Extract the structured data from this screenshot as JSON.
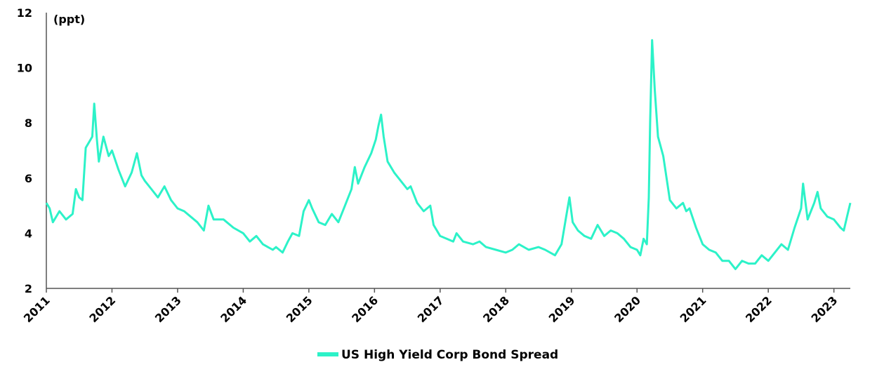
{
  "chart_data": {
    "type": "line",
    "unit_label": "(ppt)",
    "xlim": [
      2011,
      2023.25
    ],
    "ylim": [
      2,
      12
    ],
    "y_ticks": [
      "2",
      "4",
      "6",
      "8",
      "10",
      "12"
    ],
    "x_ticks": [
      "2011",
      "2012",
      "2013",
      "2014",
      "2015",
      "2016",
      "2017",
      "2018",
      "2019",
      "2020",
      "2021",
      "2022",
      "2023"
    ],
    "grid": false,
    "legend_position": "bottom-center",
    "series": [
      {
        "name": "US High Yield Corp Bond Spread",
        "color": "#2CF2C8",
        "points": [
          [
            2011.0,
            5.1
          ],
          [
            2011.05,
            4.9
          ],
          [
            2011.1,
            4.4
          ],
          [
            2011.2,
            4.8
          ],
          [
            2011.3,
            4.5
          ],
          [
            2011.4,
            4.7
          ],
          [
            2011.45,
            5.6
          ],
          [
            2011.5,
            5.3
          ],
          [
            2011.55,
            5.2
          ],
          [
            2011.6,
            7.1
          ],
          [
            2011.65,
            7.3
          ],
          [
            2011.7,
            7.5
          ],
          [
            2011.73,
            8.7
          ],
          [
            2011.77,
            7.4
          ],
          [
            2011.8,
            6.6
          ],
          [
            2011.87,
            7.5
          ],
          [
            2011.95,
            6.8
          ],
          [
            2012.0,
            7.0
          ],
          [
            2012.1,
            6.3
          ],
          [
            2012.2,
            5.7
          ],
          [
            2012.3,
            6.2
          ],
          [
            2012.38,
            6.9
          ],
          [
            2012.45,
            6.1
          ],
          [
            2012.5,
            5.9
          ],
          [
            2012.6,
            5.6
          ],
          [
            2012.7,
            5.3
          ],
          [
            2012.8,
            5.7
          ],
          [
            2012.9,
            5.2
          ],
          [
            2013.0,
            4.9
          ],
          [
            2013.1,
            4.8
          ],
          [
            2013.2,
            4.6
          ],
          [
            2013.3,
            4.4
          ],
          [
            2013.4,
            4.1
          ],
          [
            2013.47,
            5.0
          ],
          [
            2013.55,
            4.5
          ],
          [
            2013.7,
            4.5
          ],
          [
            2013.85,
            4.2
          ],
          [
            2014.0,
            4.0
          ],
          [
            2014.1,
            3.7
          ],
          [
            2014.2,
            3.9
          ],
          [
            2014.3,
            3.6
          ],
          [
            2014.45,
            3.4
          ],
          [
            2014.5,
            3.5
          ],
          [
            2014.6,
            3.3
          ],
          [
            2014.68,
            3.7
          ],
          [
            2014.75,
            4.0
          ],
          [
            2014.85,
            3.9
          ],
          [
            2014.92,
            4.8
          ],
          [
            2015.0,
            5.2
          ],
          [
            2015.05,
            4.9
          ],
          [
            2015.15,
            4.4
          ],
          [
            2015.25,
            4.3
          ],
          [
            2015.35,
            4.7
          ],
          [
            2015.45,
            4.4
          ],
          [
            2015.55,
            5.0
          ],
          [
            2015.65,
            5.6
          ],
          [
            2015.7,
            6.4
          ],
          [
            2015.75,
            5.8
          ],
          [
            2015.85,
            6.4
          ],
          [
            2015.95,
            6.9
          ],
          [
            2016.02,
            7.4
          ],
          [
            2016.06,
            7.9
          ],
          [
            2016.1,
            8.3
          ],
          [
            2016.14,
            7.5
          ],
          [
            2016.2,
            6.6
          ],
          [
            2016.3,
            6.2
          ],
          [
            2016.4,
            5.9
          ],
          [
            2016.5,
            5.6
          ],
          [
            2016.55,
            5.7
          ],
          [
            2016.65,
            5.1
          ],
          [
            2016.75,
            4.8
          ],
          [
            2016.85,
            5.0
          ],
          [
            2016.9,
            4.3
          ],
          [
            2017.0,
            3.9
          ],
          [
            2017.1,
            3.8
          ],
          [
            2017.2,
            3.7
          ],
          [
            2017.25,
            4.0
          ],
          [
            2017.35,
            3.7
          ],
          [
            2017.5,
            3.6
          ],
          [
            2017.6,
            3.7
          ],
          [
            2017.7,
            3.5
          ],
          [
            2017.85,
            3.4
          ],
          [
            2018.0,
            3.3
          ],
          [
            2018.1,
            3.4
          ],
          [
            2018.2,
            3.6
          ],
          [
            2018.35,
            3.4
          ],
          [
            2018.5,
            3.5
          ],
          [
            2018.6,
            3.4
          ],
          [
            2018.75,
            3.2
          ],
          [
            2018.85,
            3.6
          ],
          [
            2018.92,
            4.6
          ],
          [
            2018.97,
            5.3
          ],
          [
            2019.02,
            4.4
          ],
          [
            2019.1,
            4.1
          ],
          [
            2019.2,
            3.9
          ],
          [
            2019.3,
            3.8
          ],
          [
            2019.4,
            4.3
          ],
          [
            2019.5,
            3.9
          ],
          [
            2019.6,
            4.1
          ],
          [
            2019.7,
            4.0
          ],
          [
            2019.8,
            3.8
          ],
          [
            2019.9,
            3.5
          ],
          [
            2020.0,
            3.4
          ],
          [
            2020.05,
            3.2
          ],
          [
            2020.1,
            3.8
          ],
          [
            2020.15,
            3.6
          ],
          [
            2020.18,
            5.3
          ],
          [
            2020.2,
            8.0
          ],
          [
            2020.23,
            11.0
          ],
          [
            2020.27,
            9.2
          ],
          [
            2020.32,
            7.5
          ],
          [
            2020.4,
            6.8
          ],
          [
            2020.45,
            6.0
          ],
          [
            2020.5,
            5.2
          ],
          [
            2020.6,
            4.9
          ],
          [
            2020.7,
            5.1
          ],
          [
            2020.75,
            4.8
          ],
          [
            2020.8,
            4.9
          ],
          [
            2020.9,
            4.2
          ],
          [
            2021.0,
            3.6
          ],
          [
            2021.1,
            3.4
          ],
          [
            2021.2,
            3.3
          ],
          [
            2021.3,
            3.0
          ],
          [
            2021.4,
            3.0
          ],
          [
            2021.5,
            2.7
          ],
          [
            2021.6,
            3.0
          ],
          [
            2021.7,
            2.9
          ],
          [
            2021.8,
            2.9
          ],
          [
            2021.9,
            3.2
          ],
          [
            2022.0,
            3.0
          ],
          [
            2022.1,
            3.3
          ],
          [
            2022.2,
            3.6
          ],
          [
            2022.3,
            3.4
          ],
          [
            2022.4,
            4.2
          ],
          [
            2022.5,
            4.9
          ],
          [
            2022.53,
            5.8
          ],
          [
            2022.6,
            4.5
          ],
          [
            2022.7,
            5.1
          ],
          [
            2022.75,
            5.5
          ],
          [
            2022.8,
            4.9
          ],
          [
            2022.9,
            4.6
          ],
          [
            2023.0,
            4.5
          ],
          [
            2023.1,
            4.2
          ],
          [
            2023.15,
            4.1
          ],
          [
            2023.2,
            4.6
          ],
          [
            2023.25,
            5.1
          ]
        ]
      }
    ]
  }
}
